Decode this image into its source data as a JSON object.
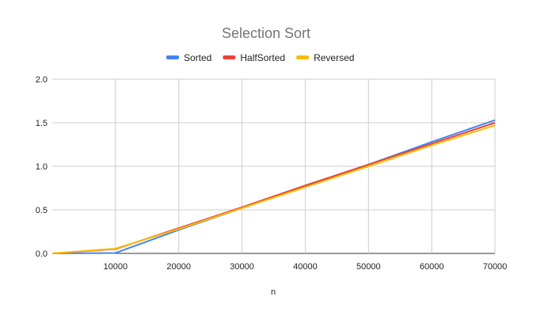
{
  "chart_data": {
    "type": "line",
    "title": "Selection Sort",
    "xlabel": "n",
    "ylabel": "",
    "xlim": [
      0,
      70000
    ],
    "ylim": [
      0,
      2.0
    ],
    "x_ticks": [
      10000,
      20000,
      30000,
      40000,
      50000,
      60000,
      70000
    ],
    "x_tick_labels": [
      "10000",
      "20000",
      "30000",
      "40000",
      "50000",
      "60000",
      "70000"
    ],
    "y_ticks": [
      0,
      0.5,
      1.0,
      1.5,
      2.0
    ],
    "y_tick_labels": [
      "0.0",
      "0.5",
      "1.0",
      "1.5",
      "2.0"
    ],
    "grid": true,
    "legend_position": "top",
    "x": [
      0,
      10000,
      20000,
      30000,
      40000,
      50000,
      60000,
      70000
    ],
    "series": [
      {
        "name": "Sorted",
        "color": "#4285f4",
        "values": [
          0.0,
          0.005,
          0.27,
          0.52,
          0.77,
          1.02,
          1.28,
          1.53
        ]
      },
      {
        "name": "HalfSorted",
        "color": "#ea4335",
        "values": [
          0.0,
          0.05,
          0.29,
          0.53,
          0.78,
          1.02,
          1.26,
          1.5
        ]
      },
      {
        "name": "Reversed",
        "color": "#fbbc04",
        "values": [
          0.0,
          0.055,
          0.28,
          0.52,
          0.76,
          1.0,
          1.24,
          1.47
        ]
      }
    ]
  }
}
